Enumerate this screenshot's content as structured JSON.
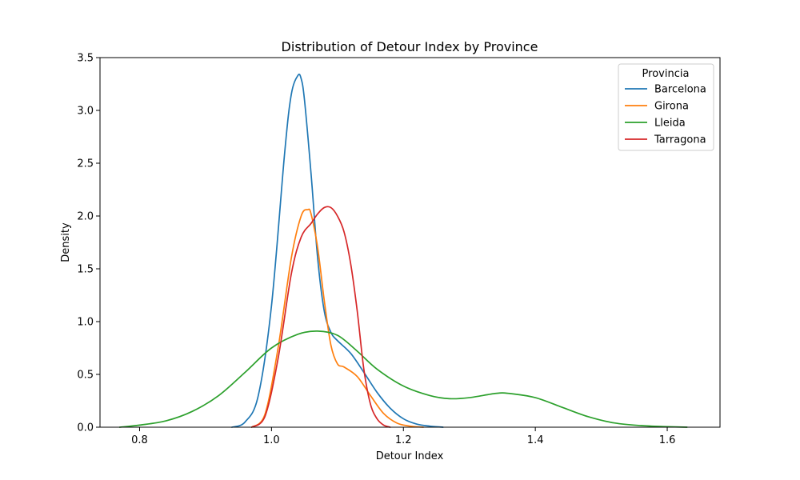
{
  "chart_data": {
    "type": "line",
    "title": "Distribution of Detour Index by Province",
    "xlabel": "Detour Index",
    "ylabel": "Density",
    "xlim": [
      0.74,
      1.68
    ],
    "ylim": [
      0,
      3.5
    ],
    "xticks": [
      0.8,
      1.0,
      1.2,
      1.4,
      1.6
    ],
    "xtick_labels": [
      "0.8",
      "1.0",
      "1.2",
      "1.4",
      "1.6"
    ],
    "yticks": [
      0.0,
      0.5,
      1.0,
      1.5,
      2.0,
      2.5,
      3.0,
      3.5
    ],
    "ytick_labels": [
      "0.0",
      "0.5",
      "1.0",
      "1.5",
      "2.0",
      "2.5",
      "3.0",
      "3.5"
    ],
    "grid": false,
    "legend": {
      "title": "Provincia",
      "position": "top-right"
    },
    "series": [
      {
        "name": "Barcelona",
        "color": "#1f77b4",
        "x": [
          0.94,
          0.96,
          0.98,
          1.0,
          1.02,
          1.03,
          1.04,
          1.045,
          1.05,
          1.06,
          1.07,
          1.08,
          1.09,
          1.1,
          1.12,
          1.14,
          1.16,
          1.18,
          1.2,
          1.22,
          1.24,
          1.26
        ],
        "y": [
          0.0,
          0.05,
          0.3,
          1.15,
          2.6,
          3.15,
          3.33,
          3.3,
          3.1,
          2.4,
          1.6,
          1.1,
          0.9,
          0.82,
          0.7,
          0.52,
          0.33,
          0.18,
          0.08,
          0.03,
          0.01,
          0.0
        ]
      },
      {
        "name": "Girona",
        "color": "#ff7f0e",
        "x": [
          0.97,
          0.99,
          1.01,
          1.03,
          1.045,
          1.055,
          1.06,
          1.07,
          1.08,
          1.09,
          1.1,
          1.11,
          1.13,
          1.15,
          1.17,
          1.19,
          1.21,
          1.23
        ],
        "y": [
          0.0,
          0.12,
          0.75,
          1.6,
          2.0,
          2.06,
          2.02,
          1.7,
          1.2,
          0.78,
          0.6,
          0.57,
          0.48,
          0.3,
          0.13,
          0.04,
          0.01,
          0.0
        ]
      },
      {
        "name": "Lleida",
        "color": "#2ca02c",
        "x": [
          0.77,
          0.8,
          0.84,
          0.88,
          0.92,
          0.96,
          1.0,
          1.04,
          1.07,
          1.1,
          1.13,
          1.16,
          1.2,
          1.24,
          1.27,
          1.3,
          1.34,
          1.36,
          1.4,
          1.44,
          1.48,
          1.52,
          1.56,
          1.6,
          1.63
        ],
        "y": [
          0.0,
          0.02,
          0.06,
          0.15,
          0.3,
          0.52,
          0.75,
          0.88,
          0.91,
          0.87,
          0.72,
          0.55,
          0.39,
          0.3,
          0.27,
          0.28,
          0.32,
          0.32,
          0.28,
          0.19,
          0.1,
          0.04,
          0.015,
          0.005,
          0.0
        ]
      },
      {
        "name": "Tarragona",
        "color": "#d62728",
        "x": [
          0.97,
          0.99,
          1.01,
          1.03,
          1.045,
          1.06,
          1.07,
          1.08,
          1.09,
          1.1,
          1.11,
          1.12,
          1.13,
          1.14,
          1.15,
          1.16,
          1.17,
          1.18
        ],
        "y": [
          0.0,
          0.1,
          0.65,
          1.45,
          1.8,
          1.93,
          2.02,
          2.08,
          2.08,
          2.0,
          1.85,
          1.55,
          1.1,
          0.55,
          0.22,
          0.08,
          0.02,
          0.0
        ]
      }
    ]
  }
}
